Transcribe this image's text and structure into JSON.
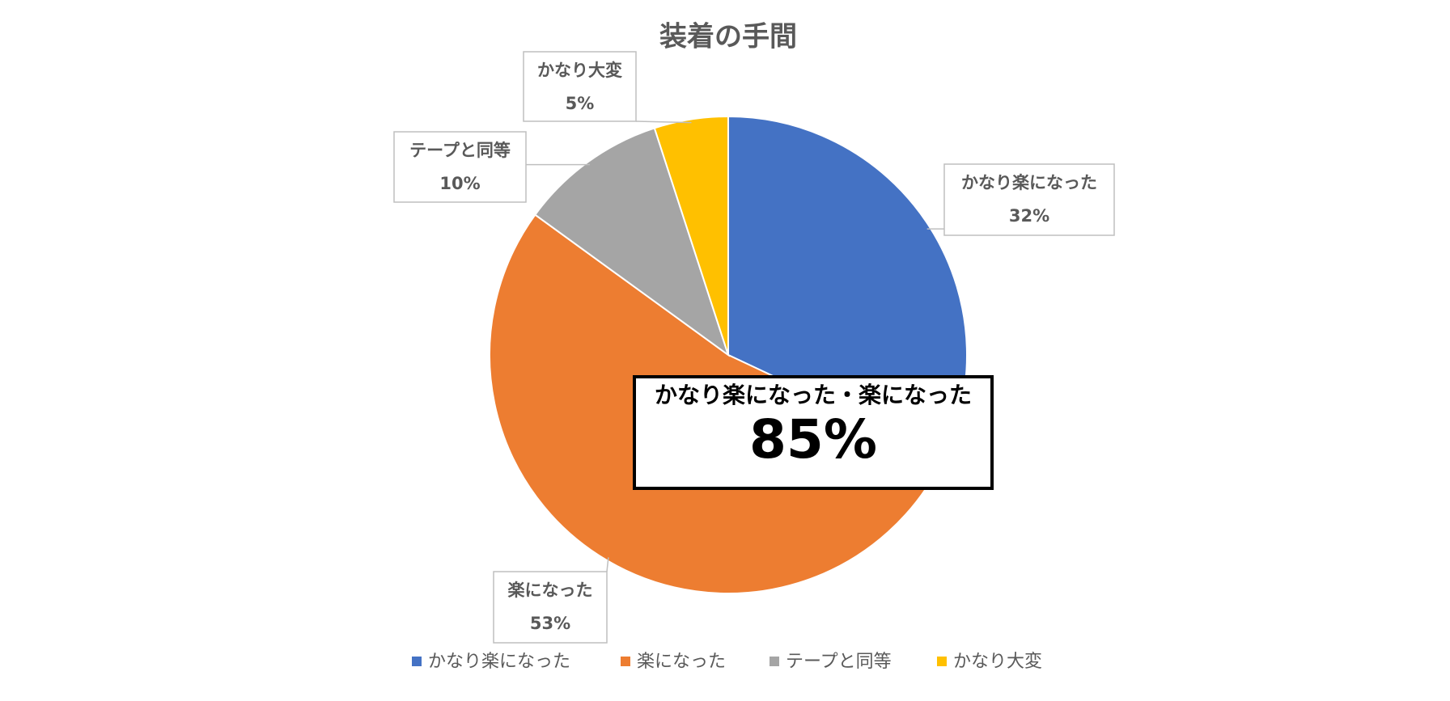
{
  "chart_data": {
    "type": "pie",
    "title": "装着の手間",
    "categories": [
      "かなり楽になった",
      "楽になった",
      "テープと同等",
      "かなり大変"
    ],
    "values": [
      32,
      53,
      10,
      5
    ],
    "value_labels": [
      "32%",
      "53%",
      "10%",
      "5%"
    ],
    "colors": [
      "#4472c4",
      "#ed7d31",
      "#a5a5a5",
      "#ffc000"
    ],
    "legend": "bottom",
    "annotation": {
      "title": "かなり楽になった・楽になった",
      "text": "85%"
    }
  }
}
